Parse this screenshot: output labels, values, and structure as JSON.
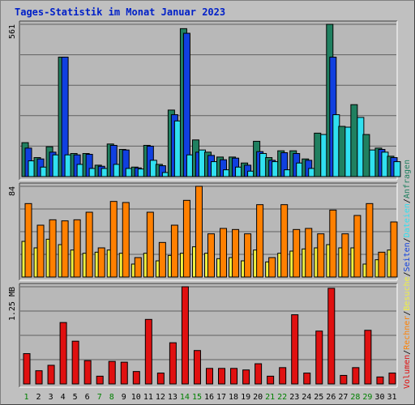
{
  "title": "Tages-Statistik im Monat Januar 2023",
  "colors": {
    "anfragen": "#208060",
    "seiten": "#1040e0",
    "dateien": "#30e0f0",
    "besuche": "#f0f040",
    "rechner": "#ff8000",
    "volumen": "#e01010",
    "weekend_label": "#008000",
    "weekday_label": "#000000",
    "grid": "#606060",
    "plot_bg": "#b8b8b8"
  },
  "chart_data": [
    {
      "type": "bar",
      "name": "hits-chart",
      "ymax_label": "561",
      "ylim": [
        0,
        561
      ],
      "categories": [
        "1",
        "2",
        "3",
        "4",
        "5",
        "6",
        "7",
        "8",
        "9",
        "10",
        "11",
        "12",
        "13",
        "14",
        "15",
        "16",
        "17",
        "18",
        "19",
        "20",
        "21",
        "22",
        "23",
        "24",
        "25",
        "26",
        "27",
        "28",
        "29",
        "30",
        "31"
      ],
      "series": [
        {
          "name": "Anfragen",
          "values": [
            125,
            70,
            110,
            440,
            85,
            85,
            42,
            120,
            100,
            35,
            115,
            45,
            245,
            545,
            135,
            90,
            72,
            72,
            50,
            130,
            70,
            95,
            95,
            65,
            160,
            561,
            185,
            265,
            155,
            105,
            75
          ]
        },
        {
          "name": "Seiten",
          "values": [
            105,
            65,
            90,
            440,
            80,
            82,
            38,
            115,
            98,
            32,
            112,
            40,
            228,
            528,
            90,
            78,
            62,
            68,
            42,
            92,
            60,
            88,
            85,
            60,
            0,
            440,
            0,
            0,
            0,
            100,
            70
          ]
        },
        {
          "name": "Dateien",
          "values": [
            58,
            35,
            80,
            80,
            45,
            30,
            30,
            45,
            30,
            28,
            60,
            15,
            205,
            80,
            98,
            55,
            25,
            35,
            20,
            85,
            55,
            25,
            50,
            30,
            155,
            228,
            182,
            218,
            98,
            90,
            55
          ]
        }
      ]
    },
    {
      "type": "bar",
      "name": "visits-chart",
      "ymax_label": "84",
      "ylim": [
        0,
        84
      ],
      "categories": [
        "1",
        "2",
        "3",
        "4",
        "5",
        "6",
        "7",
        "8",
        "9",
        "10",
        "11",
        "12",
        "13",
        "14",
        "15",
        "16",
        "17",
        "18",
        "19",
        "20",
        "21",
        "22",
        "23",
        "24",
        "25",
        "26",
        "27",
        "28",
        "29",
        "30",
        "31"
      ],
      "series": [
        {
          "name": "Besuche",
          "values": [
            33,
            27,
            35,
            30,
            25,
            22,
            23,
            25,
            22,
            12,
            22,
            15,
            20,
            22,
            28,
            22,
            17,
            18,
            15,
            25,
            14,
            22,
            24,
            26,
            27,
            30,
            27,
            27,
            12,
            16,
            25
          ]
        },
        {
          "name": "Rechner",
          "values": [
            68,
            48,
            53,
            52,
            53,
            60,
            27,
            70,
            69,
            18,
            60,
            32,
            48,
            71,
            84,
            40,
            45,
            44,
            40,
            67,
            18,
            67,
            44,
            45,
            40,
            62,
            40,
            57,
            68,
            23,
            51
          ]
        }
      ]
    },
    {
      "type": "bar",
      "name": "volume-chart",
      "ymax_label": "1.25 MB",
      "ylim": [
        0,
        1.25
      ],
      "categories": [
        "1",
        "2",
        "3",
        "4",
        "5",
        "6",
        "7",
        "8",
        "9",
        "10",
        "11",
        "12",
        "13",
        "14",
        "15",
        "16",
        "17",
        "18",
        "19",
        "20",
        "21",
        "22",
        "23",
        "24",
        "25",
        "26",
        "27",
        "28",
        "29",
        "30",
        "31"
      ],
      "series": [
        {
          "name": "Volumen",
          "values": [
            0.39,
            0.17,
            0.24,
            0.79,
            0.55,
            0.3,
            0.1,
            0.29,
            0.28,
            0.16,
            0.83,
            0.14,
            0.53,
            1.25,
            0.43,
            0.2,
            0.2,
            0.2,
            0.18,
            0.26,
            0.1,
            0.21,
            0.89,
            0.14,
            0.68,
            1.23,
            0.11,
            0.21,
            0.69,
            0.09,
            0.14
          ]
        }
      ]
    }
  ],
  "weekend_days": [
    "1",
    "7",
    "8",
    "14",
    "15",
    "21",
    "22",
    "28",
    "29"
  ],
  "legend": {
    "top": [
      "Anfragen",
      "/",
      "Dateien",
      "/",
      "Seiten",
      "/",
      "Besuche",
      "/",
      "Rechner",
      "/",
      "Volumen"
    ]
  }
}
